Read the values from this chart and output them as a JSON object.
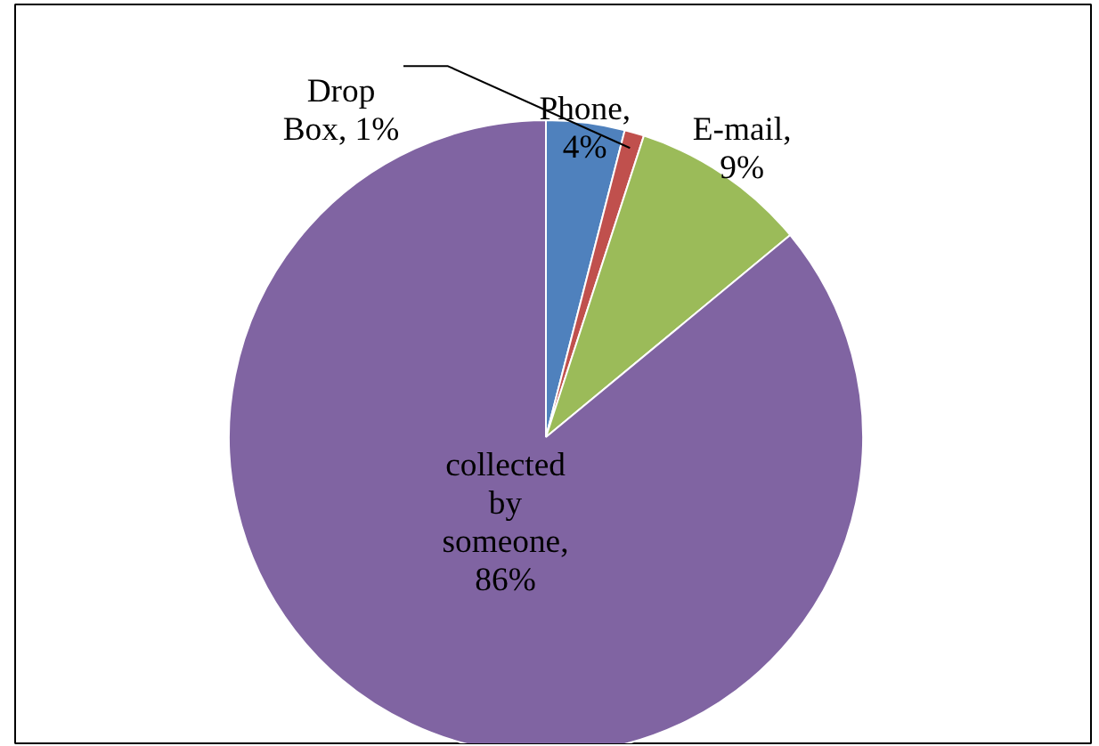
{
  "chart_data": {
    "type": "pie",
    "categories": [
      "Phone",
      "Drop Box",
      "E-mail",
      "collected by someone"
    ],
    "values": [
      4,
      1,
      9,
      86
    ],
    "colors": [
      "#4f81bd",
      "#c0504d",
      "#9bbb59",
      "#8064a2"
    ],
    "value_labels": [
      ", 4%",
      ", 1%",
      ", 9%",
      ", 86%"
    ]
  }
}
